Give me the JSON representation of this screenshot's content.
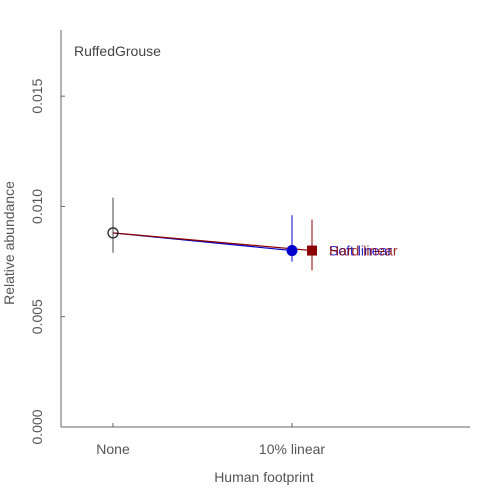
{
  "chart_data": {
    "type": "line",
    "title": "RuffedGrouse",
    "xlabel": "Human footprint",
    "ylabel": "Relative abundance",
    "categories": [
      "None",
      "10% linear"
    ],
    "ylim": [
      0,
      0.018
    ],
    "yticks": [
      0.0,
      0.005,
      0.01,
      0.015
    ],
    "ytick_labels": [
      "0.000",
      "0.005",
      "0.010",
      "0.015"
    ],
    "grid": false,
    "baseline": {
      "x": "None",
      "y": 0.0088,
      "ci": [
        0.0079,
        0.0104
      ]
    },
    "series": [
      {
        "name": "Soft linear",
        "color": "#0000cc",
        "marker": "circle",
        "x": "10% linear",
        "y": 0.008,
        "ci": [
          0.0075,
          0.0096
        ]
      },
      {
        "name": "Hard linear",
        "color": "#8b0000",
        "marker": "square",
        "x": "10% linear",
        "y": 0.008,
        "ci": [
          0.0071,
          0.0094
        ]
      }
    ]
  }
}
